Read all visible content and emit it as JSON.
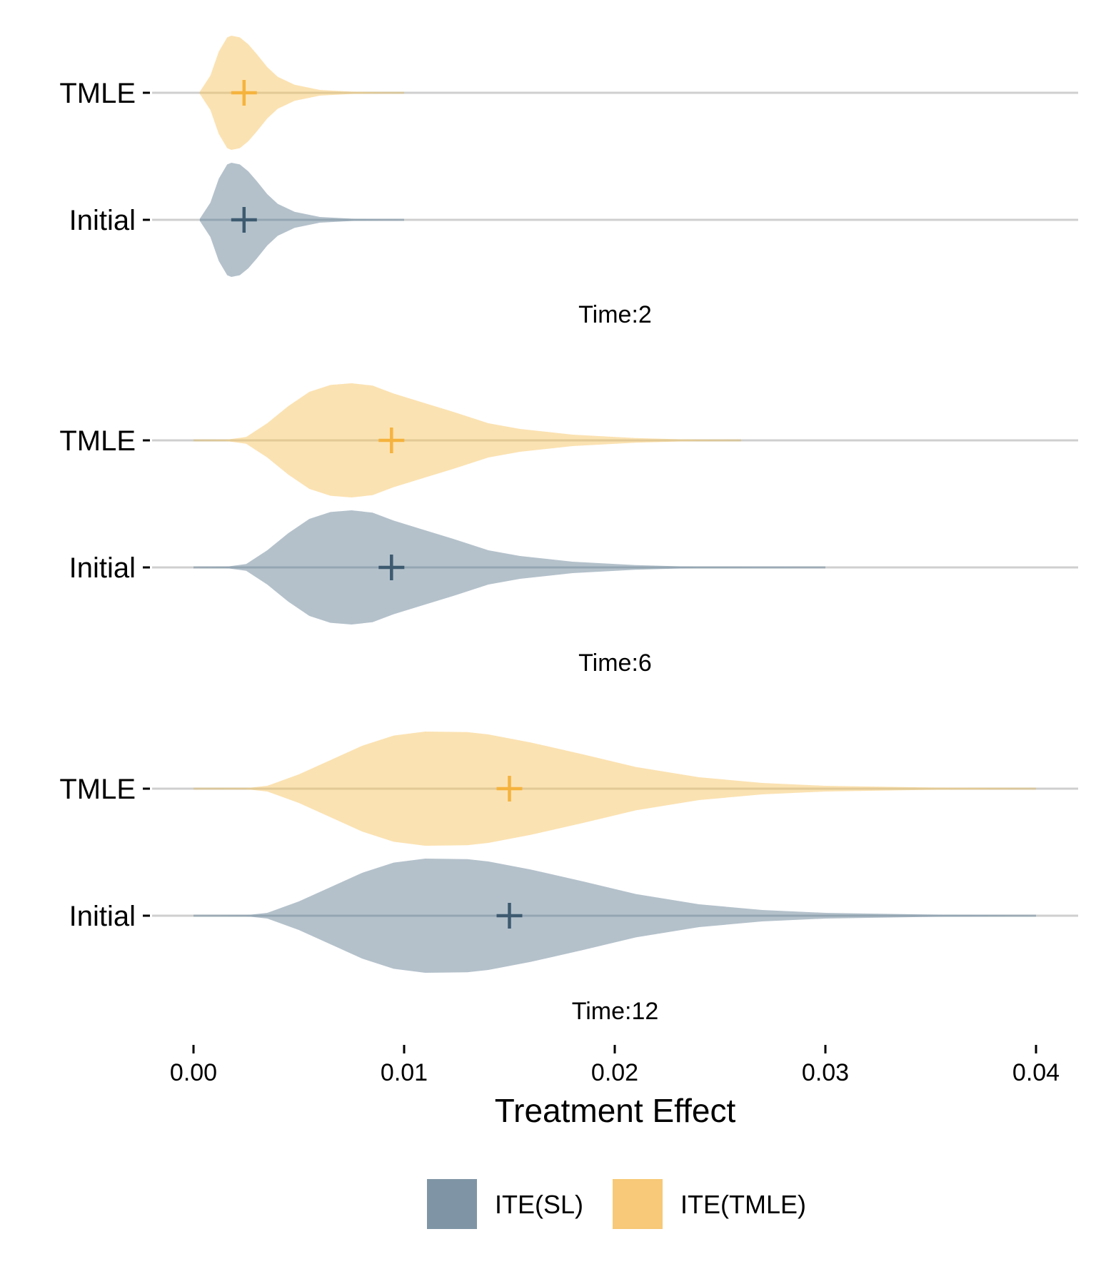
{
  "chart_data": {
    "type": "violin",
    "orientation": "horizontal",
    "xlabel": "Treatment Effect",
    "xlim": [
      -0.0013,
      0.042
    ],
    "x_ticks": [
      0.0,
      0.01,
      0.02,
      0.03,
      0.04
    ],
    "x_tick_labels": [
      "0.00",
      "0.01",
      "0.02",
      "0.03",
      "0.04"
    ],
    "categories": [
      "TMLE",
      "Initial"
    ],
    "legend": {
      "position": "bottom",
      "entries": [
        {
          "name": "ITE(SL)",
          "color": "#7f95a6"
        },
        {
          "name": "ITE(TMLE)",
          "color": "#f7c978"
        }
      ]
    },
    "colors": {
      "TMLE_fill": "#fbdfab",
      "Initial_fill": "#aebcc7",
      "TMLE_marker": "#f5b33e",
      "Initial_marker": "#3d5a70",
      "baseline": "#cfcfcf"
    },
    "panels": [
      {
        "label": "Time:2",
        "series": [
          {
            "category": "TMLE",
            "mean": 0.0024,
            "profile": [
              [
                0.0003,
                0.02
              ],
              [
                0.0008,
                0.3
              ],
              [
                0.0012,
                0.72
              ],
              [
                0.0016,
                0.97
              ],
              [
                0.0018,
                1.0
              ],
              [
                0.0022,
                0.97
              ],
              [
                0.0026,
                0.85
              ],
              [
                0.003,
                0.68
              ],
              [
                0.0035,
                0.45
              ],
              [
                0.004,
                0.28
              ],
              [
                0.0048,
                0.14
              ],
              [
                0.006,
                0.05
              ],
              [
                0.0075,
                0.02
              ],
              [
                0.009,
                0.005
              ],
              [
                0.01,
                0.0
              ]
            ]
          },
          {
            "category": "Initial",
            "mean": 0.0024,
            "profile": [
              [
                0.0003,
                0.02
              ],
              [
                0.0008,
                0.3
              ],
              [
                0.0012,
                0.72
              ],
              [
                0.0016,
                0.97
              ],
              [
                0.0018,
                1.0
              ],
              [
                0.0022,
                0.97
              ],
              [
                0.0026,
                0.85
              ],
              [
                0.003,
                0.68
              ],
              [
                0.0035,
                0.45
              ],
              [
                0.004,
                0.28
              ],
              [
                0.0048,
                0.14
              ],
              [
                0.006,
                0.05
              ],
              [
                0.0075,
                0.02
              ],
              [
                0.009,
                0.005
              ],
              [
                0.01,
                0.0
              ]
            ]
          }
        ]
      },
      {
        "label": "Time:6",
        "series": [
          {
            "category": "TMLE",
            "mean": 0.0094,
            "profile": [
              [
                0.0,
                0.0
              ],
              [
                0.0015,
                0.01
              ],
              [
                0.0025,
                0.06
              ],
              [
                0.0035,
                0.3
              ],
              [
                0.0045,
                0.6
              ],
              [
                0.0055,
                0.85
              ],
              [
                0.0065,
                0.97
              ],
              [
                0.0075,
                1.0
              ],
              [
                0.0085,
                0.96
              ],
              [
                0.0095,
                0.82
              ],
              [
                0.011,
                0.65
              ],
              [
                0.0125,
                0.48
              ],
              [
                0.014,
                0.3
              ],
              [
                0.0155,
                0.2
              ],
              [
                0.018,
                0.1
              ],
              [
                0.021,
                0.04
              ],
              [
                0.024,
                0.01
              ],
              [
                0.026,
                0.0
              ]
            ]
          },
          {
            "category": "Initial",
            "mean": 0.0094,
            "profile": [
              [
                0.0,
                0.0
              ],
              [
                0.0015,
                0.01
              ],
              [
                0.0025,
                0.06
              ],
              [
                0.0035,
                0.3
              ],
              [
                0.0045,
                0.6
              ],
              [
                0.0055,
                0.85
              ],
              [
                0.0065,
                0.97
              ],
              [
                0.0075,
                1.0
              ],
              [
                0.0085,
                0.96
              ],
              [
                0.0095,
                0.82
              ],
              [
                0.011,
                0.65
              ],
              [
                0.0125,
                0.48
              ],
              [
                0.014,
                0.3
              ],
              [
                0.0155,
                0.2
              ],
              [
                0.018,
                0.1
              ],
              [
                0.021,
                0.04
              ],
              [
                0.024,
                0.01
              ],
              [
                0.03,
                0.0
              ]
            ]
          }
        ]
      },
      {
        "label": "Time:12",
        "series": [
          {
            "category": "TMLE",
            "mean": 0.015,
            "profile": [
              [
                0.0,
                0.0
              ],
              [
                0.0025,
                0.01
              ],
              [
                0.0035,
                0.05
              ],
              [
                0.005,
                0.25
              ],
              [
                0.0065,
                0.5
              ],
              [
                0.008,
                0.75
              ],
              [
                0.0095,
                0.93
              ],
              [
                0.011,
                1.0
              ],
              [
                0.013,
                0.99
              ],
              [
                0.014,
                0.95
              ],
              [
                0.016,
                0.81
              ],
              [
                0.0185,
                0.6
              ],
              [
                0.021,
                0.38
              ],
              [
                0.024,
                0.2
              ],
              [
                0.027,
                0.1
              ],
              [
                0.03,
                0.05
              ],
              [
                0.035,
                0.02
              ],
              [
                0.04,
                0.0
              ]
            ]
          },
          {
            "category": "Initial",
            "mean": 0.015,
            "profile": [
              [
                0.0,
                0.0
              ],
              [
                0.0025,
                0.01
              ],
              [
                0.0035,
                0.05
              ],
              [
                0.005,
                0.25
              ],
              [
                0.0065,
                0.5
              ],
              [
                0.008,
                0.75
              ],
              [
                0.0095,
                0.93
              ],
              [
                0.011,
                1.0
              ],
              [
                0.013,
                0.99
              ],
              [
                0.014,
                0.95
              ],
              [
                0.016,
                0.81
              ],
              [
                0.0185,
                0.6
              ],
              [
                0.021,
                0.38
              ],
              [
                0.024,
                0.2
              ],
              [
                0.027,
                0.1
              ],
              [
                0.03,
                0.05
              ],
              [
                0.035,
                0.02
              ],
              [
                0.04,
                0.0
              ]
            ]
          }
        ]
      }
    ]
  }
}
